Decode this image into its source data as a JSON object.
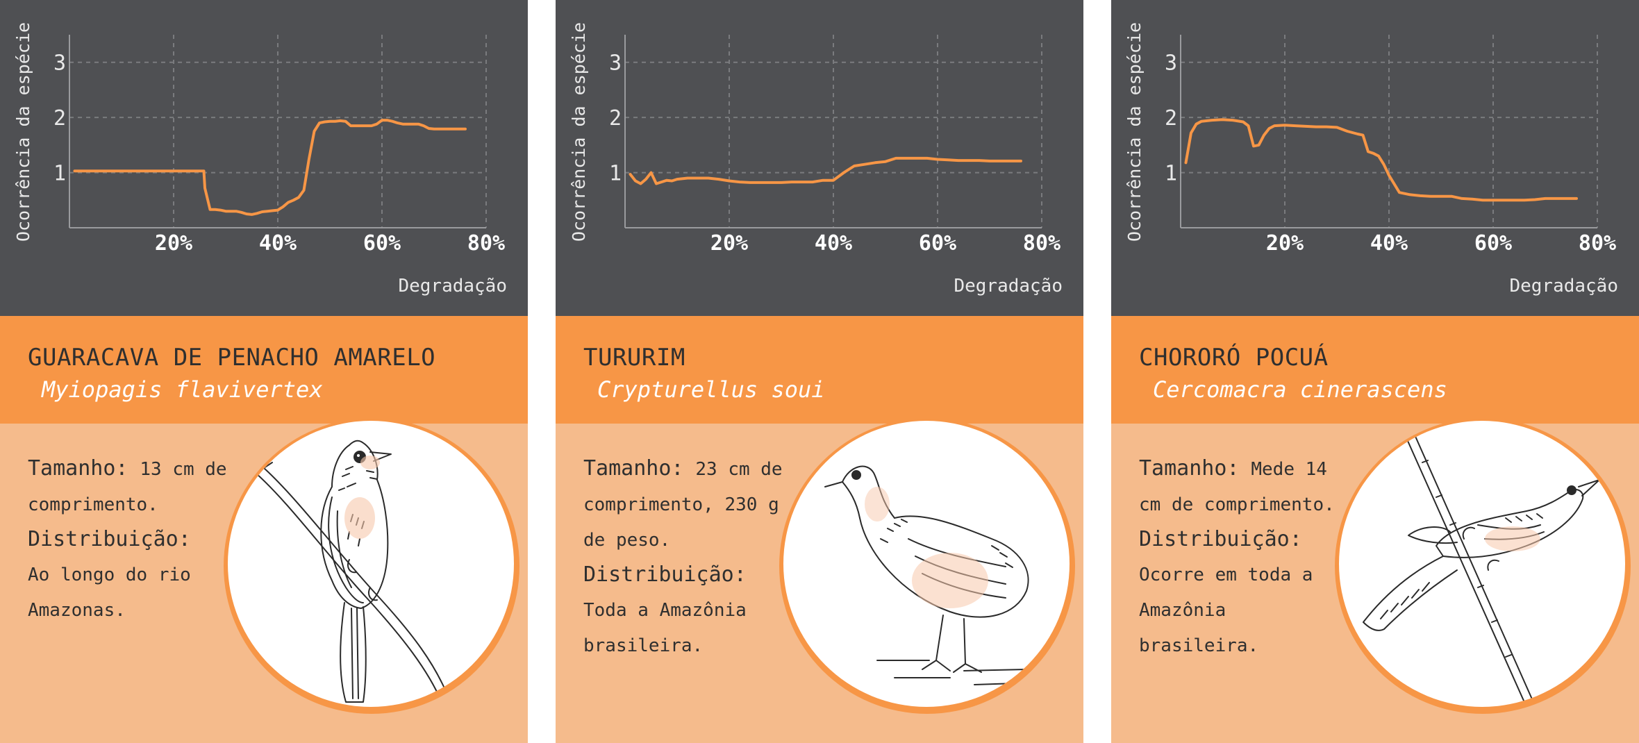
{
  "colors": {
    "chart_bg": "#4f5053",
    "band": "#f79646",
    "card_bg": "#f5bb8c",
    "line": "#f79646",
    "text_dark": "#2f2f2f"
  },
  "chart_data": [
    {
      "type": "line",
      "xlabel": "Degradação",
      "ylabel": "Ocorrência da espécie",
      "xlim": [
        0,
        80
      ],
      "ylim": [
        0,
        3.5
      ],
      "xticks": [
        "20%",
        "40%",
        "60%",
        "80%"
      ],
      "yticks": [
        "1",
        "2",
        "3"
      ],
      "grid": true,
      "x": [
        1,
        5,
        10,
        15,
        20,
        24,
        25.8,
        26,
        27,
        28,
        29,
        30,
        31,
        32,
        33,
        34,
        35,
        36,
        37,
        38,
        39,
        40,
        41,
        42,
        43,
        44,
        45,
        46,
        47,
        48,
        49,
        50,
        51,
        52,
        53,
        54,
        55,
        56,
        57,
        58,
        59,
        60,
        61,
        62,
        63,
        64,
        65,
        66,
        67,
        68,
        69,
        70,
        71,
        72,
        73,
        74,
        75,
        76
      ],
      "y": [
        1.03,
        1.03,
        1.03,
        1.03,
        1.03,
        1.03,
        1.03,
        0.72,
        0.33,
        0.33,
        0.32,
        0.3,
        0.3,
        0.3,
        0.28,
        0.25,
        0.24,
        0.26,
        0.29,
        0.3,
        0.31,
        0.32,
        0.38,
        0.46,
        0.5,
        0.55,
        0.68,
        1.25,
        1.75,
        1.9,
        1.92,
        1.93,
        1.93,
        1.94,
        1.93,
        1.85,
        1.85,
        1.85,
        1.85,
        1.85,
        1.88,
        1.95,
        1.95,
        1.93,
        1.9,
        1.88,
        1.88,
        1.88,
        1.88,
        1.85,
        1.8,
        1.79,
        1.79,
        1.79,
        1.79,
        1.79,
        1.79,
        1.79
      ]
    },
    {
      "type": "line",
      "xlabel": "Degradação",
      "ylabel": "Ocorrência da espécie",
      "xlim": [
        0,
        80
      ],
      "ylim": [
        0,
        3.5
      ],
      "xticks": [
        "20%",
        "40%",
        "60%",
        "80%"
      ],
      "yticks": [
        "1",
        "2",
        "3"
      ],
      "grid": true,
      "x": [
        1,
        2,
        3,
        4,
        5,
        6,
        7,
        8,
        9,
        10,
        12,
        14,
        16,
        18,
        20,
        22,
        24,
        26,
        28,
        30,
        32,
        34,
        36,
        38,
        40,
        42,
        44,
        46,
        48,
        50,
        52,
        54,
        56,
        58,
        60,
        62,
        64,
        66,
        68,
        70,
        72,
        74,
        76
      ],
      "y": [
        0.97,
        0.85,
        0.8,
        0.88,
        1.0,
        0.8,
        0.83,
        0.86,
        0.85,
        0.88,
        0.9,
        0.9,
        0.9,
        0.88,
        0.85,
        0.83,
        0.82,
        0.82,
        0.82,
        0.82,
        0.83,
        0.83,
        0.83,
        0.86,
        0.86,
        1.0,
        1.12,
        1.15,
        1.18,
        1.2,
        1.26,
        1.26,
        1.26,
        1.26,
        1.24,
        1.23,
        1.22,
        1.22,
        1.22,
        1.21,
        1.21,
        1.21,
        1.21
      ]
    },
    {
      "type": "line",
      "xlabel": "Degradação",
      "ylabel": "Ocorrência da espécie",
      "xlim": [
        0,
        80
      ],
      "ylim": [
        0,
        3.5
      ],
      "xticks": [
        "20%",
        "40%",
        "60%",
        "80%"
      ],
      "yticks": [
        "1",
        "2",
        "3"
      ],
      "grid": true,
      "x": [
        1,
        2,
        3,
        4,
        6,
        8,
        10,
        12,
        13,
        14,
        15,
        16,
        17,
        18,
        20,
        22,
        24,
        26,
        28,
        30,
        32,
        34,
        35,
        36,
        37,
        38,
        39,
        40,
        42,
        44,
        46,
        48,
        50,
        52,
        54,
        56,
        58,
        60,
        62,
        64,
        66,
        68,
        70,
        72,
        74,
        76
      ],
      "y": [
        1.18,
        1.72,
        1.88,
        1.93,
        1.95,
        1.96,
        1.95,
        1.92,
        1.85,
        1.48,
        1.5,
        1.68,
        1.8,
        1.85,
        1.86,
        1.85,
        1.84,
        1.83,
        1.83,
        1.82,
        1.75,
        1.7,
        1.68,
        1.38,
        1.35,
        1.3,
        1.15,
        0.95,
        0.64,
        0.6,
        0.58,
        0.57,
        0.57,
        0.57,
        0.53,
        0.52,
        0.5,
        0.5,
        0.5,
        0.5,
        0.5,
        0.51,
        0.53,
        0.53,
        0.53,
        0.53
      ]
    }
  ],
  "cards": [
    {
      "common_name": "GUARACAVA DE PENACHO AMARELO",
      "scientific_name": "Myiopagis flavivertex",
      "size_label": "Tamanho:",
      "size_text": "13 cm de comprimento.",
      "distribution_label": "Distribuição:",
      "distribution_text": "Ao longo do rio Amazonas.",
      "illustration_icon": "perched-flycatcher-illustration-icon"
    },
    {
      "common_name": "TURURIM",
      "scientific_name": "Crypturellus soui",
      "size_label": "Tamanho:",
      "size_text": "23 cm de comprimento, 230 g de peso.",
      "distribution_label": "Distribuição:",
      "distribution_text": "Toda a Amazônia brasileira.",
      "illustration_icon": "tinamou-illustration-icon"
    },
    {
      "common_name": "CHORORÓ POCUÁ",
      "scientific_name": "Cercomacra cinerascens",
      "size_label": "Tamanho:",
      "size_text": "Mede 14 cm de comprimento.",
      "distribution_label": "Distribuição:",
      "distribution_text": "Ocorre em toda a Amazônia brasileira.",
      "illustration_icon": "antbird-illustration-icon"
    }
  ]
}
